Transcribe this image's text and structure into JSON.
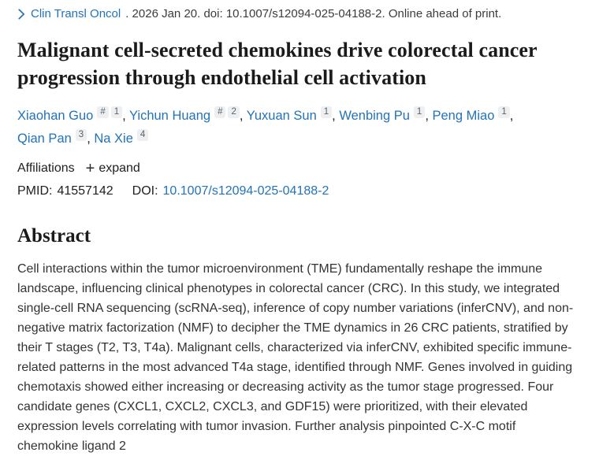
{
  "journal_bar": {
    "journal": "Clin Transl Oncol",
    "citation": ". 2026 Jan 20. doi: 10.1007/s12094-025-04188-2. Online ahead of print."
  },
  "title": "Malignant cell-secreted chemokines drive colorectal cancer progression through endothelial cell activation",
  "authors": [
    {
      "name": "Xiaohan Guo",
      "sups": [
        "#",
        "1"
      ]
    },
    {
      "name": "Yichun Huang",
      "sups": [
        "#",
        "2"
      ]
    },
    {
      "name": "Yuxuan Sun",
      "sups": [
        "1"
      ]
    },
    {
      "name": "Wenbing Pu",
      "sups": [
        "1"
      ]
    },
    {
      "name": "Peng Miao",
      "sups": [
        "1"
      ]
    },
    {
      "name": "Qian Pan",
      "sups": [
        "3"
      ]
    },
    {
      "name": "Na Xie",
      "sups": [
        "4"
      ]
    }
  ],
  "affiliations": {
    "label": "Affiliations",
    "expand_label": "expand",
    "plus_glyph": "+"
  },
  "identifiers": {
    "pmid_label": "PMID:",
    "pmid": "41557142",
    "doi_label": "DOI:",
    "doi": "10.1007/s12094-025-04188-2"
  },
  "abstract": {
    "heading": "Abstract",
    "text": "Cell interactions within the tumor microenvironment (TME) fundamentally reshape the immune landscape, influencing clinical phenotypes in colorectal cancer (CRC). In this study, we integrated single-cell RNA sequencing (scRNA-seq), inference of copy number variations (inferCNV), and non-negative matrix factorization (NMF) to decipher the TME dynamics in 26 CRC patients, stratified by their T stages (T2, T3, T4a). Malignant cells, characterized via inferCNV, exhibited specific immune-related patterns in the most advanced T4a stage, identified through NMF. Genes involved in guiding chemotaxis showed either increasing or decreasing activity as the tumor stage progressed. Four candidate genes (CXCL1, CXCL2, CXCL3, and GDF15) were prioritized, with their elevated expression levels correlating with tumor invasion. Further analysis pinpointed C-X-C motif chemokine ligand 2"
  },
  "colors": {
    "link_blue": "#2273b9",
    "text_dark": "#212121",
    "badge_bg": "#edeff1",
    "badge_text": "#57636d"
  }
}
